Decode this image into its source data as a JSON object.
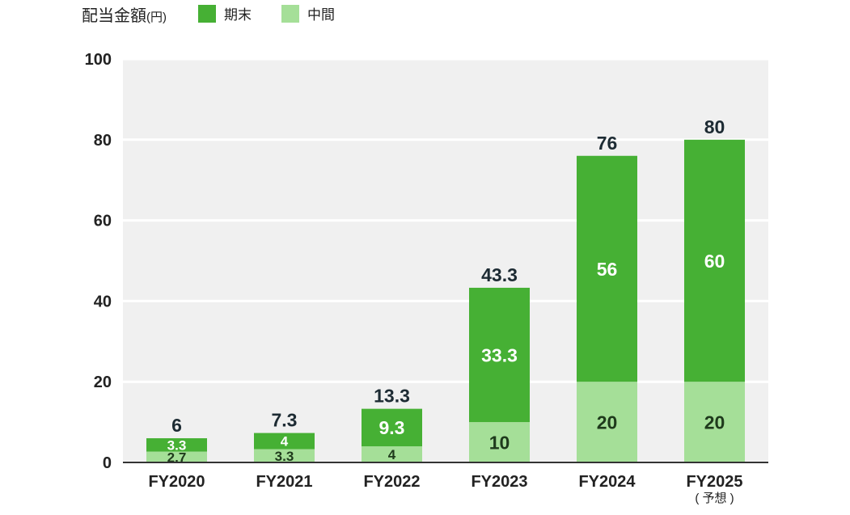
{
  "legend": {
    "title": "配当金額",
    "unit": "(円)",
    "items": [
      {
        "label": "期末",
        "color": "#46b034"
      },
      {
        "label": "中間",
        "color": "#a5df98"
      }
    ]
  },
  "chart_data": {
    "type": "bar",
    "stacked": true,
    "categories": [
      "FY2020",
      "FY2021",
      "FY2022",
      "FY2023",
      "FY2024",
      "FY2025"
    ],
    "category_notes": [
      "",
      "",
      "",
      "",
      "",
      "( 予想 )"
    ],
    "series": [
      {
        "name": "中間",
        "values": [
          2.7,
          3.3,
          4,
          10,
          20,
          20
        ],
        "labels": [
          "2.7",
          "3.3",
          "4",
          "10",
          "20",
          "20"
        ],
        "color": "#a5df98"
      },
      {
        "name": "期末",
        "values": [
          3.3,
          4,
          9.3,
          33.3,
          56,
          60
        ],
        "labels": [
          "3.3",
          "4",
          "9.3",
          "33.3",
          "56",
          "60"
        ],
        "color": "#46b034"
      }
    ],
    "totals": [
      "6",
      "7.3",
      "13.3",
      "43.3",
      "76",
      "80"
    ],
    "ylim": [
      0,
      100
    ],
    "yticks": [
      "0",
      "20",
      "40",
      "60",
      "80",
      "100"
    ],
    "grid": true,
    "background": "#f0f0f0",
    "legend_position": "top-left"
  }
}
